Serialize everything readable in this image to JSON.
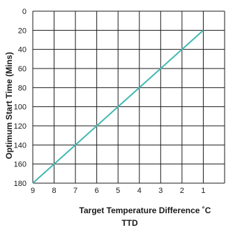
{
  "chart_data": {
    "type": "line",
    "xlabel": "Target Temperature Difference ˚C",
    "xlabel_sub": "TTD",
    "ylabel": "Optimum Start Time (Mins)",
    "x_ticks": [
      9,
      8,
      7,
      6,
      5,
      4,
      3,
      2,
      1
    ],
    "y_ticks": [
      0,
      20,
      40,
      60,
      80,
      100,
      120,
      140,
      160,
      180
    ],
    "xlim": [
      9,
      0
    ],
    "ylim": [
      0,
      180
    ],
    "y_inverted": true,
    "grid": true,
    "line_color": "#3fb8b0",
    "series": [
      {
        "x": [
          9,
          1
        ],
        "y": [
          180,
          20
        ]
      }
    ]
  }
}
